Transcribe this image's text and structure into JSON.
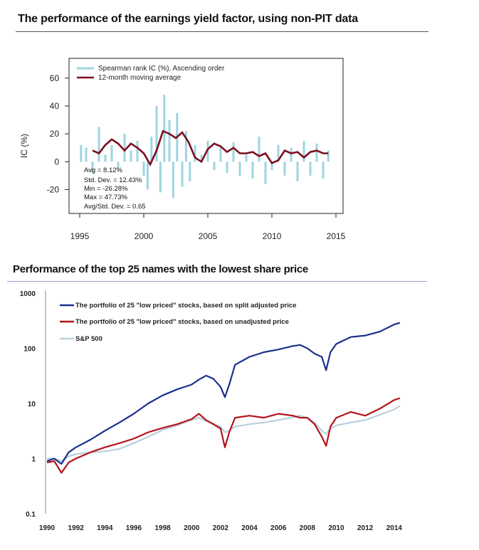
{
  "chart_data": [
    {
      "type": "bar",
      "title": "The performance of the earnings yield factor, using non-PIT data",
      "ylabel": "IC (%)",
      "xlabel": "",
      "xlim": [
        1995,
        2015
      ],
      "ylim": [
        -30,
        65
      ],
      "x_ticks": [
        "1995",
        "2000",
        "2005",
        "2010",
        "2015"
      ],
      "y_ticks": [
        "60",
        "40",
        "20",
        "0",
        "-20"
      ],
      "series": [
        {
          "name": "Spearman rank IC (%), Ascending order",
          "color": "#9ed4e2",
          "x": [
            1995.1,
            1995.5,
            1996.0,
            1996.5,
            1997.0,
            1997.5,
            1998.0,
            1998.5,
            1999.0,
            1999.5,
            2000.0,
            2000.3,
            2000.6,
            2001.0,
            2001.3,
            2001.6,
            2002.0,
            2002.3,
            2002.6,
            2003.0,
            2003.3,
            2003.6,
            2004.0,
            2004.5,
            2005.0,
            2005.5,
            2006.0,
            2006.5,
            2007.0,
            2007.5,
            2008.0,
            2008.5,
            2009.0,
            2009.5,
            2010.0,
            2010.5,
            2011.0,
            2011.5,
            2012.0,
            2012.5,
            2013.0,
            2013.5,
            2014.0,
            2014.4
          ],
          "values": [
            12,
            10,
            -8,
            25,
            5,
            12,
            -5,
            20,
            8,
            15,
            -10,
            -20,
            18,
            40,
            -22,
            48,
            30,
            -26,
            35,
            -18,
            22,
            -14,
            12,
            5,
            15,
            -6,
            12,
            -8,
            14,
            -10,
            5,
            -12,
            18,
            -16,
            -6,
            12,
            -10,
            10,
            -14,
            15,
            -10,
            13,
            -12,
            8
          ]
        },
        {
          "name": "12-month moving average",
          "color": "#7a0f1f",
          "x": [
            1996.0,
            1996.5,
            1997.0,
            1997.5,
            1998.0,
            1998.5,
            1999.0,
            1999.5,
            2000.0,
            2000.5,
            2001.0,
            2001.5,
            2002.0,
            2002.5,
            2003.0,
            2003.5,
            2004.0,
            2004.5,
            2005.0,
            2005.5,
            2006.0,
            2006.5,
            2007.0,
            2007.5,
            2008.0,
            2008.5,
            2009.0,
            2009.5,
            2010.0,
            2010.5,
            2011.0,
            2011.5,
            2012.0,
            2012.5,
            2013.0,
            2013.5,
            2014.0,
            2014.4
          ],
          "values": [
            8,
            6,
            12,
            16,
            13,
            8,
            13,
            10,
            6,
            -2,
            8,
            22,
            20,
            17,
            21,
            14,
            3,
            0,
            9,
            13,
            11,
            7,
            10,
            6,
            6,
            7,
            4,
            6,
            -1,
            1,
            8,
            6,
            7,
            3,
            7,
            8,
            6,
            6
          ]
        }
      ],
      "annotations": [
        "Avg = 8.12%",
        "Std. Dev. = 12.43%",
        "Min = -26.28%",
        "Max = 47.73%",
        "Avg/Std. Dev. = 0.65"
      ],
      "legend_position": "top-left",
      "grid": false
    },
    {
      "type": "line",
      "title": "Performance of the top 25 names with the lowest share price",
      "xlabel": "",
      "ylabel": "",
      "log_y": true,
      "xlim": [
        1990,
        2014.8
      ],
      "ylim": [
        0.1,
        1000
      ],
      "x_ticks": [
        "1990",
        "1992",
        "1994",
        "1996",
        "1998",
        "2000",
        "2002",
        "2004",
        "2006",
        "2008",
        "2010",
        "2012",
        "2014"
      ],
      "y_ticks": [
        "1000",
        "100",
        "10",
        "1",
        "0.1"
      ],
      "x": [
        1990,
        1990.5,
        1991,
        1991.5,
        1992,
        1993,
        1994,
        1995,
        1996,
        1997,
        1998,
        1999,
        2000,
        2000.5,
        2001,
        2001.5,
        2002,
        2002.3,
        2002.6,
        2003,
        2004,
        2005,
        2006,
        2007,
        2007.5,
        2008,
        2008.5,
        2009,
        2009.3,
        2009.6,
        2010,
        2011,
        2012,
        2013,
        2014,
        2014.4
      ],
      "series": [
        {
          "name": "The portfolio of 25 \"low priced\" stocks, based on split adjusted price",
          "color": "#1c2f8a",
          "values": [
            0.9,
            1.0,
            0.8,
            1.3,
            1.6,
            2.2,
            3.2,
            4.5,
            6.5,
            10,
            14,
            18,
            22,
            27,
            32,
            28,
            20,
            13,
            22,
            50,
            70,
            85,
            95,
            110,
            115,
            100,
            80,
            70,
            40,
            85,
            120,
            160,
            170,
            200,
            270,
            290
          ]
        },
        {
          "name": "The portfolio of 25 \"low priced\" stocks, based on unadjusted price",
          "color": "#b3151c",
          "values": [
            0.85,
            0.9,
            0.55,
            0.85,
            1.0,
            1.3,
            1.6,
            1.9,
            2.3,
            3.0,
            3.6,
            4.2,
            5.2,
            6.5,
            5.0,
            4.2,
            3.5,
            1.6,
            3.0,
            5.5,
            6.0,
            5.5,
            6.5,
            6.0,
            5.5,
            5.5,
            4.2,
            2.5,
            1.7,
            3.8,
            5.5,
            7.0,
            6.0,
            8.0,
            11.5,
            12.5
          ]
        },
        {
          "name": "S&P 500",
          "color": "#b8cfdb",
          "values": [
            1.0,
            1.0,
            0.9,
            1.1,
            1.2,
            1.3,
            1.35,
            1.5,
            1.9,
            2.5,
            3.3,
            4.0,
            5.0,
            5.5,
            4.8,
            4.3,
            3.8,
            3.0,
            3.2,
            3.8,
            4.2,
            4.5,
            5.0,
            5.6,
            6.0,
            5.5,
            4.5,
            3.2,
            2.8,
            3.5,
            4.0,
            4.5,
            5.0,
            6.2,
            7.8,
            9.0
          ]
        }
      ],
      "legend_position": "top-left",
      "grid": false
    }
  ]
}
